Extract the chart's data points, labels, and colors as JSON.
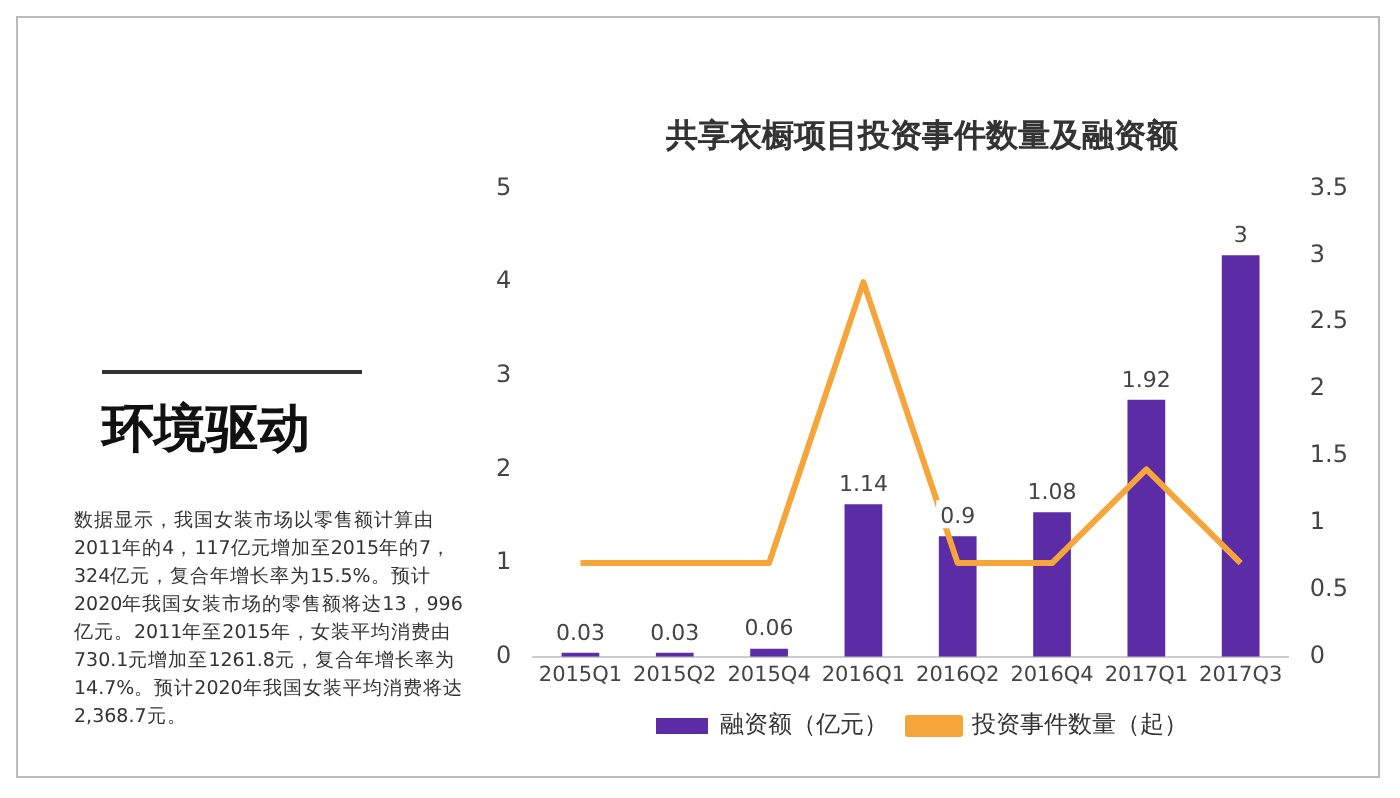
{
  "chart_data": {
    "type": "bar",
    "title": "共享衣橱项目投资事件数量及融资额",
    "categories": [
      "2015Q1",
      "2015Q2",
      "2015Q4",
      "2016Q1",
      "2016Q2",
      "2016Q4",
      "2017Q1",
      "2017Q3"
    ],
    "series": [
      {
        "name": "融资额（亿元）",
        "axis": "y2",
        "color": "#5b2ca6",
        "values": [
          0.03,
          0.03,
          0.06,
          1.14,
          0.9,
          1.08,
          1.92,
          3
        ],
        "value_labels": [
          "0.03",
          "0.03",
          "0.06",
          "1.14",
          "0.9",
          "1.08",
          "1.92",
          "3"
        ]
      },
      {
        "name": "投资事件数量（起）",
        "type": "line",
        "axis": "y",
        "color": "#f5a53a",
        "marker": "none",
        "values": [
          1,
          1,
          1,
          4,
          1,
          1,
          2,
          1
        ]
      }
    ],
    "ylim": [
      0,
      5
    ],
    "yticks": [
      0,
      1,
      2,
      3,
      4,
      5
    ],
    "y2lim": [
      0,
      3.5
    ],
    "y2ticks": [
      0,
      0.5,
      1,
      1.5,
      2,
      2.5,
      3,
      3.5
    ],
    "grid": false,
    "legend": "bottom",
    "annotations": [
      "环境驱动",
      "数据显示，我国女装市场以零售额计算由2011年的4，117亿元增加至2015年的7，324亿元，复合年增长率为15.5%。预计2020年我国女装市场的零售额将达13，996亿元。2011年至2015年，女装平均消费由730.1元增加至1261.8元，复合年增长率为14.7%。预计2020年我国女装平均消费将达2,368.7元。"
    ]
  }
}
